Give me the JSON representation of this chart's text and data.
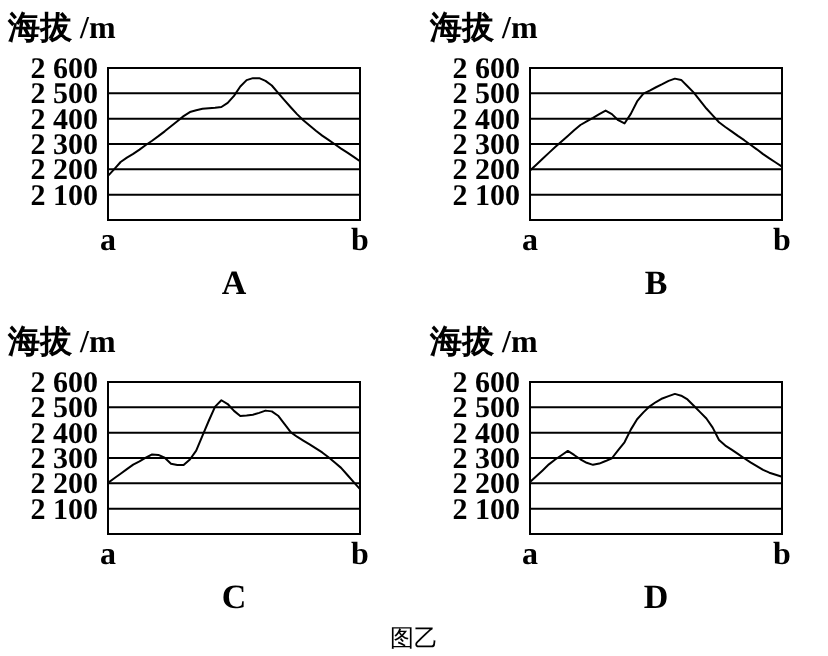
{
  "chart_data": [
    {
      "type": "line",
      "title": "A",
      "ylabel": "海拔 /m",
      "ylim": [
        2000,
        2600
      ],
      "grid": "y",
      "yticks": [
        {
          "value": 2100,
          "label": "2 100"
        },
        {
          "value": 2200,
          "label": "2 200"
        },
        {
          "value": 2300,
          "label": "2 300"
        },
        {
          "value": 2400,
          "label": "2 400"
        },
        {
          "value": 2500,
          "label": "2 500"
        },
        {
          "value": 2600,
          "label": "2 600"
        }
      ],
      "categories": [
        "a",
        null,
        null,
        null,
        null,
        null,
        null,
        null,
        null,
        null,
        null,
        null,
        null,
        null,
        null,
        null,
        null,
        null,
        null,
        null,
        null,
        null,
        null,
        null,
        null,
        null,
        null,
        null,
        null,
        null,
        null,
        null,
        null,
        null,
        null,
        null,
        null,
        null,
        null,
        null,
        "b"
      ],
      "series": [
        {
          "color": "#000000",
          "values": [
            2174,
            2201,
            2229,
            2246,
            2261,
            2278,
            2296,
            2313,
            2331,
            2350,
            2370,
            2390,
            2410,
            2426,
            2433,
            2439,
            2441,
            2443,
            2446,
            2462,
            2490,
            2527,
            2552,
            2560,
            2560,
            2549,
            2531,
            2502,
            2473,
            2445,
            2418,
            2394,
            2373,
            2352,
            2333,
            2316,
            2299,
            2282,
            2266,
            2249,
            2232
          ]
        }
      ]
    },
    {
      "type": "line",
      "title": "B",
      "ylabel": "海拔 /m",
      "ylim": [
        2000,
        2600
      ],
      "grid": "y",
      "yticks": [
        {
          "value": 2100,
          "label": "2 100"
        },
        {
          "value": 2200,
          "label": "2 200"
        },
        {
          "value": 2300,
          "label": "2 300"
        },
        {
          "value": 2400,
          "label": "2 400"
        },
        {
          "value": 2500,
          "label": "2 500"
        },
        {
          "value": 2600,
          "label": "2 600"
        }
      ],
      "categories": [
        "a",
        null,
        null,
        null,
        null,
        null,
        null,
        null,
        null,
        null,
        null,
        null,
        null,
        null,
        null,
        null,
        null,
        null,
        null,
        null,
        null,
        null,
        null,
        null,
        null,
        null,
        null,
        null,
        null,
        null,
        null,
        null,
        null,
        null,
        null,
        null,
        null,
        null,
        null,
        null,
        "b"
      ],
      "series": [
        {
          "color": "#000000",
          "values": [
            2195,
            2218,
            2242,
            2265,
            2288,
            2310,
            2332,
            2354,
            2375,
            2389,
            2403,
            2418,
            2432,
            2418,
            2394,
            2381,
            2419,
            2468,
            2499,
            2511,
            2524,
            2536,
            2549,
            2558,
            2553,
            2528,
            2503,
            2471,
            2440,
            2413,
            2386,
            2367,
            2350,
            2332,
            2315,
            2297,
            2279,
            2260,
            2243,
            2227,
            2211
          ]
        }
      ]
    },
    {
      "type": "line",
      "title": "C",
      "ylabel": "海拔 /m",
      "ylim": [
        2000,
        2600
      ],
      "grid": "y",
      "yticks": [
        {
          "value": 2100,
          "label": "2 100"
        },
        {
          "value": 2200,
          "label": "2 200"
        },
        {
          "value": 2300,
          "label": "2 300"
        },
        {
          "value": 2400,
          "label": "2 400"
        },
        {
          "value": 2500,
          "label": "2 500"
        },
        {
          "value": 2600,
          "label": "2 600"
        }
      ],
      "categories": [
        "a",
        null,
        null,
        null,
        null,
        null,
        null,
        null,
        null,
        null,
        null,
        null,
        null,
        null,
        null,
        null,
        null,
        null,
        null,
        null,
        null,
        null,
        null,
        null,
        null,
        null,
        null,
        null,
        null,
        null,
        null,
        null,
        null,
        null,
        null,
        null,
        null,
        null,
        null,
        null,
        "b"
      ],
      "series": [
        {
          "color": "#000000",
          "values": [
            2202,
            2220,
            2238,
            2256,
            2274,
            2287,
            2301,
            2314,
            2312,
            2301,
            2277,
            2272,
            2272,
            2294,
            2329,
            2388,
            2447,
            2503,
            2528,
            2513,
            2486,
            2466,
            2468,
            2471,
            2478,
            2487,
            2484,
            2467,
            2435,
            2402,
            2384,
            2369,
            2354,
            2338,
            2322,
            2303,
            2282,
            2261,
            2233,
            2205,
            2177
          ]
        }
      ]
    },
    {
      "type": "line",
      "title": "D",
      "ylabel": "海拔 /m",
      "annotations": [
        "图乙"
      ],
      "ylim": [
        2000,
        2600
      ],
      "grid": "y",
      "yticks": [
        {
          "value": 2100,
          "label": "2 100"
        },
        {
          "value": 2200,
          "label": "2 200"
        },
        {
          "value": 2300,
          "label": "2 300"
        },
        {
          "value": 2400,
          "label": "2 400"
        },
        {
          "value": 2500,
          "label": "2 500"
        },
        {
          "value": 2600,
          "label": "2 600"
        }
      ],
      "categories": [
        "a",
        null,
        null,
        null,
        null,
        null,
        null,
        null,
        null,
        null,
        null,
        null,
        null,
        null,
        null,
        null,
        null,
        null,
        null,
        null,
        null,
        null,
        null,
        null,
        null,
        null,
        null,
        null,
        null,
        null,
        null,
        null,
        null,
        null,
        null,
        null,
        null,
        null,
        null,
        null,
        "b"
      ],
      "series": [
        {
          "color": "#000000",
          "values": [
            2205,
            2228,
            2251,
            2275,
            2294,
            2311,
            2328,
            2312,
            2295,
            2281,
            2273,
            2278,
            2288,
            2299,
            2331,
            2362,
            2412,
            2453,
            2480,
            2504,
            2521,
            2535,
            2544,
            2553,
            2546,
            2531,
            2506,
            2481,
            2456,
            2420,
            2371,
            2349,
            2333,
            2316,
            2299,
            2283,
            2268,
            2253,
            2242,
            2234,
            2226
          ]
        }
      ]
    }
  ]
}
